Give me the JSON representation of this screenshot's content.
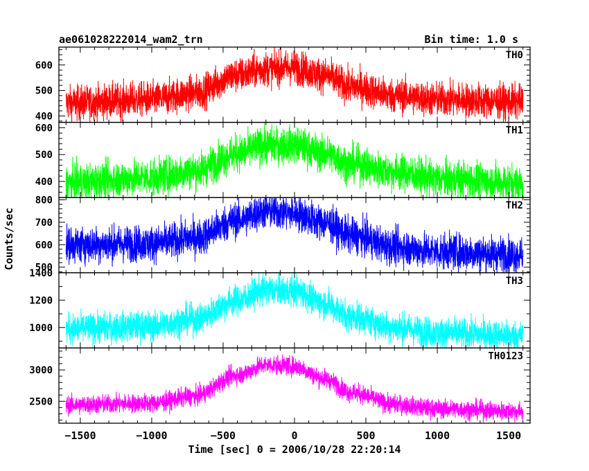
{
  "header": {
    "title": "ae061028222014_wam2_trn",
    "bin_time": "Bin time: 1.0 s"
  },
  "chart_data": {
    "type": "line",
    "title": "ae061028222014_wam2_trn",
    "xlabel": "Time [sec] 0 = 2006/10/28 22:20:14",
    "ylabel": "Counts/sec",
    "xlim": [
      -1650,
      1650
    ],
    "x_ticks": [
      -1500,
      -1000,
      -500,
      0,
      500,
      1000,
      1500
    ],
    "x_tick_labels": [
      "−1500",
      "−1000",
      "−500",
      "0",
      "500",
      "1000",
      "1500"
    ],
    "data_range": [
      -1600,
      1600
    ],
    "grid": false,
    "panels": [
      {
        "name": "TH0",
        "color": "#ff0000",
        "ylim": [
          375,
          670
        ],
        "yticks": [
          400,
          500,
          600
        ],
        "curve_x": [
          -1600,
          -1000,
          -700,
          -400,
          -200,
          0,
          200,
          400,
          700,
          1000,
          1600
        ],
        "curve_y": [
          450,
          465,
          490,
          560,
          585,
          590,
          560,
          515,
          480,
          465,
          455
        ],
        "noise": 34
      },
      {
        "name": "TH1",
        "color": "#00ff00",
        "ylim": [
          340,
          620
        ],
        "yticks": [
          400,
          500,
          600
        ],
        "curve_x": [
          -1600,
          -1000,
          -700,
          -400,
          -200,
          0,
          200,
          400,
          700,
          1000,
          1600
        ],
        "curve_y": [
          395,
          415,
          440,
          505,
          535,
          535,
          505,
          465,
          435,
          410,
          395
        ],
        "noise": 34
      },
      {
        "name": "TH2",
        "color": "#0000ff",
        "ylim": [
          475,
          810
        ],
        "yticks": [
          500,
          600,
          700,
          800
        ],
        "curve_x": [
          -1600,
          -1000,
          -700,
          -400,
          -200,
          0,
          200,
          400,
          700,
          1000,
          1600
        ],
        "curve_y": [
          600,
          605,
          630,
          710,
          750,
          740,
          700,
          640,
          590,
          570,
          555
        ],
        "noise": 40
      },
      {
        "name": "TH3",
        "color": "#00ffff",
        "ylim": [
          850,
          1400
        ],
        "yticks": [
          1000,
          1200,
          1400
        ],
        "curve_x": [
          -1600,
          -1000,
          -700,
          -400,
          -200,
          0,
          200,
          400,
          700,
          1000,
          1600
        ],
        "curve_y": [
          990,
          1010,
          1060,
          1200,
          1275,
          1270,
          1180,
          1080,
          1000,
          960,
          940
        ],
        "noise": 55
      },
      {
        "name": "TH0123",
        "color": "#ff00ff",
        "ylim": [
          2150,
          3350
        ],
        "yticks": [
          2500,
          3000
        ],
        "curve_x": [
          -1600,
          -1000,
          -700,
          -400,
          -200,
          0,
          200,
          400,
          700,
          1000,
          1600
        ],
        "curve_y": [
          2440,
          2470,
          2580,
          2920,
          3080,
          3060,
          2870,
          2640,
          2450,
          2380,
          2340
        ],
        "noise": 75
      }
    ]
  }
}
